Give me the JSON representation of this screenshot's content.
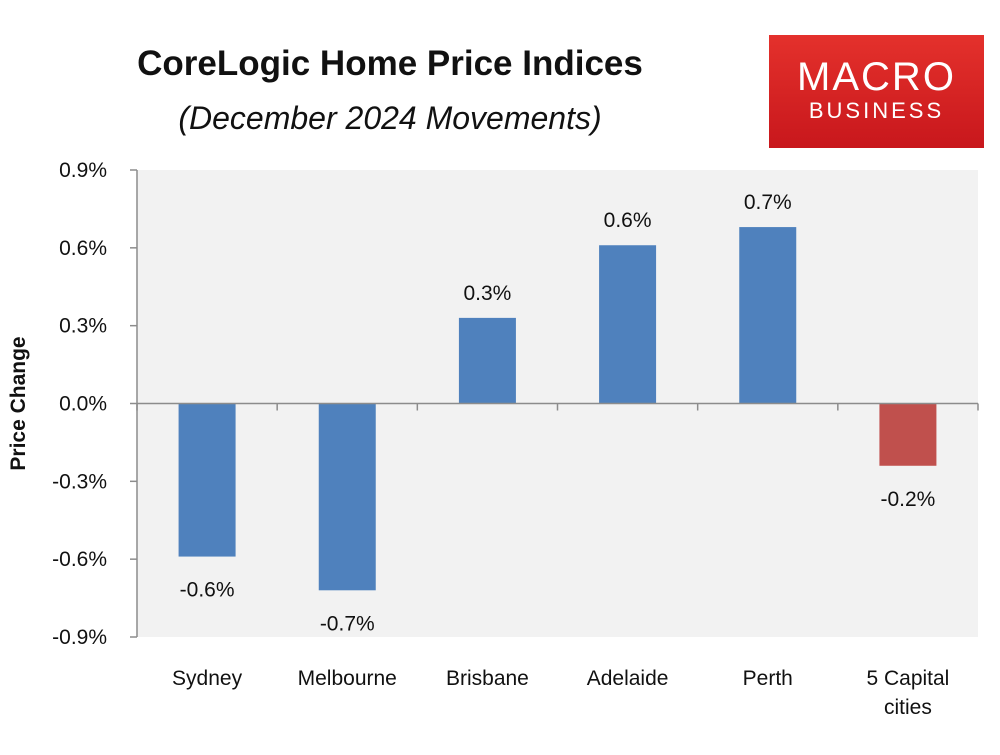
{
  "chart_data": {
    "type": "bar",
    "title": "CoreLogic Home Price Indices",
    "subtitle": "(December 2024 Movements)",
    "xlabel": "",
    "ylabel": "Price Change",
    "ylim": [
      -0.9,
      0.9
    ],
    "yticks": [
      0.9,
      0.6,
      0.3,
      0.0,
      -0.3,
      -0.6,
      -0.9
    ],
    "ytick_labels": [
      "0.9%",
      "0.6%",
      "0.3%",
      "0.0%",
      "-0.3%",
      "-0.6%",
      "-0.9%"
    ],
    "grid": false,
    "categories": [
      [
        "Sydney"
      ],
      [
        "Melbourne"
      ],
      [
        "Brisbane"
      ],
      [
        "Adelaide"
      ],
      [
        "Perth"
      ],
      [
        "5 Capital",
        "cities"
      ]
    ],
    "values": [
      -0.59,
      -0.72,
      0.33,
      0.61,
      0.68,
      -0.24
    ],
    "data_labels": [
      "-0.6%",
      "-0.7%",
      "0.3%",
      "0.6%",
      "0.7%",
      "-0.2%"
    ],
    "colors": [
      "#4f81bd",
      "#4f81bd",
      "#4f81bd",
      "#4f81bd",
      "#4f81bd",
      "#c0504d"
    ],
    "plot_background": "#f2f2f2"
  },
  "logo": {
    "top": "MACRO",
    "bottom": "BUSINESS",
    "color": "#d9211f"
  }
}
